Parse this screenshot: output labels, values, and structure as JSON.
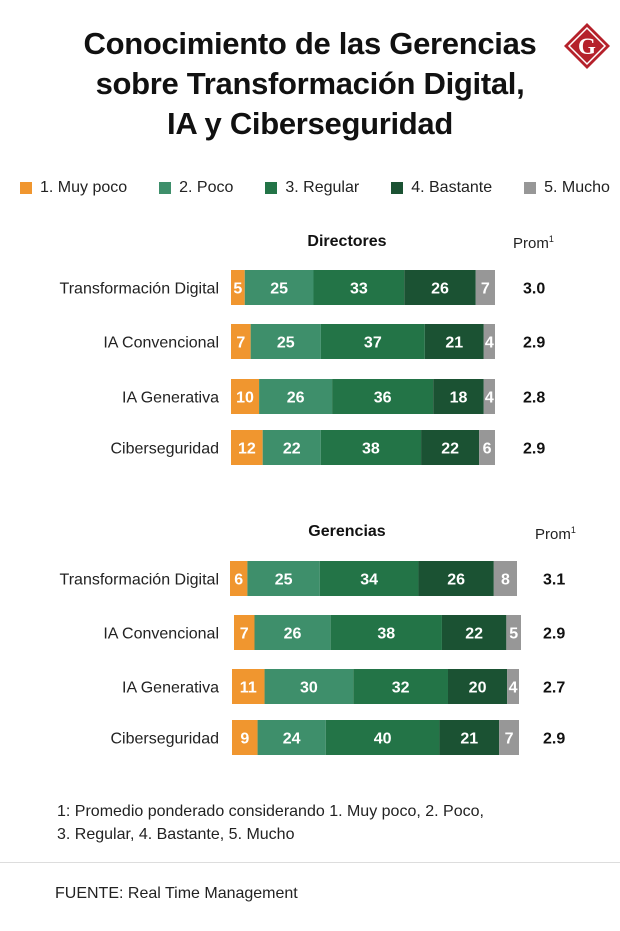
{
  "title": {
    "line1": "Conocimiento de las Gerencias",
    "line2": "sobre Transformación Digital,",
    "line3": "IA y Ciberseguridad"
  },
  "logo": {
    "icon": "g-diamond-icon",
    "letter": "G",
    "color": "#b5212b"
  },
  "legend": [
    {
      "label": "1. Muy poco",
      "color": "#f0962f"
    },
    {
      "label": "2. Poco",
      "color": "#3e8f6b"
    },
    {
      "label": "3. Regular",
      "color": "#237447"
    },
    {
      "label": "4. Bastante",
      "color": "#1b5233"
    },
    {
      "label": "5. Mucho",
      "color": "#979797"
    }
  ],
  "chart_data": [
    {
      "type": "bar",
      "stacked": true,
      "orientation": "horizontal",
      "title": "Directores",
      "avg_label": "Prom",
      "avg_note": "1",
      "categories": [
        "Transformación Digital",
        "IA Convencional",
        "IA Generativa",
        "Ciberseguridad"
      ],
      "series": [
        {
          "name": "1. Muy poco",
          "values": [
            5,
            7,
            10,
            12
          ]
        },
        {
          "name": "2. Poco",
          "values": [
            25,
            25,
            26,
            22
          ]
        },
        {
          "name": "3. Regular",
          "values": [
            33,
            37,
            36,
            38
          ]
        },
        {
          "name": "4. Bastante",
          "values": [
            26,
            21,
            18,
            22
          ]
        },
        {
          "name": "5. Mucho",
          "values": [
            7,
            4,
            4,
            6
          ]
        }
      ],
      "averages": [
        "3.0",
        "2.9",
        "2.8",
        "2.9"
      ]
    },
    {
      "type": "bar",
      "stacked": true,
      "orientation": "horizontal",
      "title": "Gerencias",
      "avg_label": "Prom",
      "avg_note": "1",
      "categories": [
        "Transformación Digital",
        "IA Convencional",
        "IA Generativa",
        "Ciberseguridad"
      ],
      "series": [
        {
          "name": "1. Muy poco",
          "values": [
            6,
            7,
            11,
            9
          ]
        },
        {
          "name": "2. Poco",
          "values": [
            25,
            26,
            30,
            24
          ]
        },
        {
          "name": "3. Regular",
          "values": [
            34,
            38,
            32,
            40
          ]
        },
        {
          "name": "4. Bastante",
          "values": [
            26,
            22,
            20,
            21
          ]
        },
        {
          "name": "5. Mucho",
          "values": [
            8,
            5,
            4,
            7
          ]
        }
      ],
      "averages": [
        "3.1",
        "2.9",
        "2.7",
        "2.9"
      ]
    }
  ],
  "footnote": {
    "line1": "1: Promedio ponderado considerando 1. Muy poco, 2. Poco,",
    "line2": "3. Regular, 4. Bastante, 5. Mucho"
  },
  "source": "FUENTE: Real Time Management"
}
